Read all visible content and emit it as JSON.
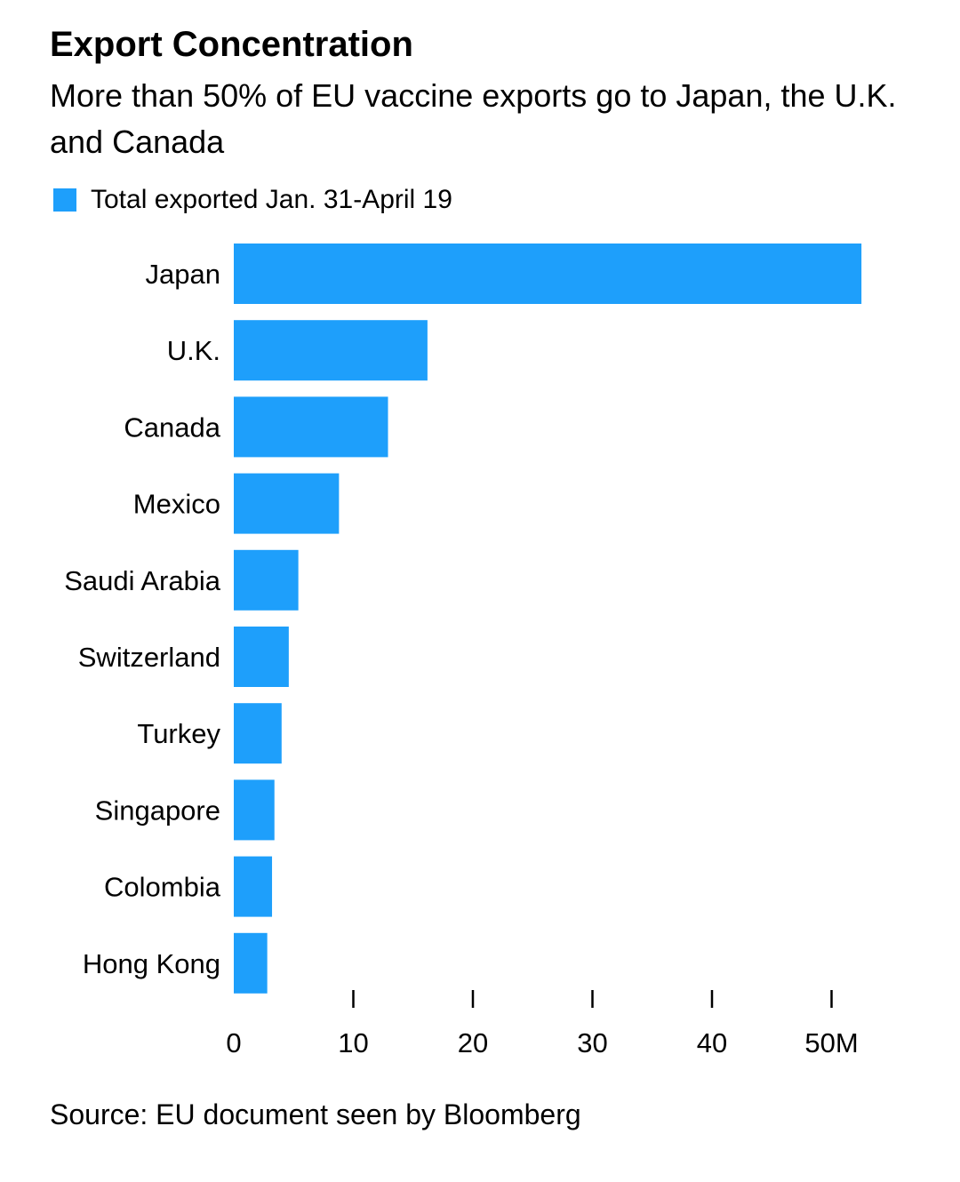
{
  "title": "Export Concentration",
  "subtitle": "More than 50% of EU vaccine exports go to Japan, the U.K. and Canada",
  "legend": {
    "label": "Total exported Jan. 31-April 19",
    "color": "#1e9ffb"
  },
  "source": "Source: EU document seen by Bloomberg",
  "chart_data": {
    "type": "bar",
    "orientation": "horizontal",
    "categories": [
      "Japan",
      "U.K.",
      "Canada",
      "Mexico",
      "Saudi Arabia",
      "Switzerland",
      "Turkey",
      "Singapore",
      "Colombia",
      "Hong Kong"
    ],
    "series": [
      {
        "name": "Total exported Jan. 31-April 19",
        "values": [
          52.5,
          16.2,
          12.9,
          8.8,
          5.4,
          4.6,
          4.0,
          3.4,
          3.2,
          2.8
        ],
        "color": "#1e9ffb"
      }
    ],
    "x_ticks": [
      {
        "value": 0,
        "label": "0"
      },
      {
        "value": 10,
        "label": "10"
      },
      {
        "value": 20,
        "label": "20"
      },
      {
        "value": 30,
        "label": "30"
      },
      {
        "value": 40,
        "label": "40"
      },
      {
        "value": 50,
        "label": "50M"
      }
    ],
    "xlim": [
      0,
      55
    ],
    "grid": false
  }
}
